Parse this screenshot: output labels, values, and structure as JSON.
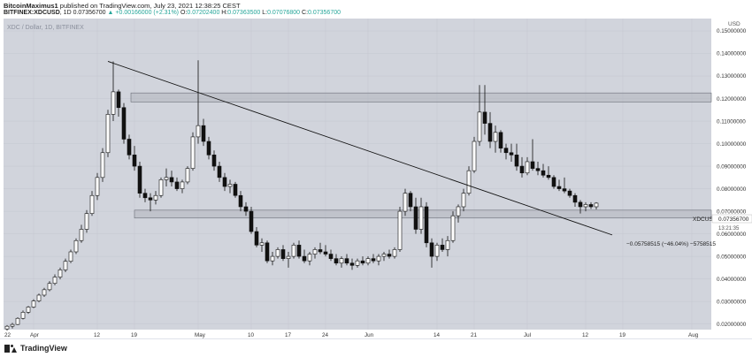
{
  "header": {
    "author": "BitcoinMaximus1",
    "published_text": "published on TradingView.com, July 23, 2021 12:38:25 CEST",
    "symbol": "BITFINEX:XDCUSD",
    "interval": "1D",
    "price": "0.07356700",
    "change": "▲ +0.00166000 (+2.31%)",
    "o_label": "O:",
    "o_value": "0.07202400",
    "h_label": "H:",
    "h_value": "0.07363500",
    "l_label": "L:",
    "l_value": "0.07076800",
    "c_label": "C:",
    "c_value": "0.07356700"
  },
  "chart": {
    "watermark": "XDC / Dollar, 1D, BITFINEX",
    "currency": "USD",
    "symbol_tag": "XDCUSD",
    "last_price_tag": "0.07356700",
    "countdown_tag": "13:21:35",
    "measure_label": "−0.05758515 (−46.04%) −5758515",
    "footer_logo": "TradingView"
  },
  "chart_data": {
    "type": "candlestick",
    "y_tick_labels": [
      "0.15000000",
      "0.14000000",
      "0.13000000",
      "0.12000000",
      "0.11000000",
      "0.10000000",
      "0.09000000",
      "0.08000000",
      "0.07000000",
      "0.06000000",
      "0.05000000",
      "0.04000000",
      "0.03000000",
      "0.02000000"
    ],
    "y_ticks": [
      0.15,
      0.14,
      0.13,
      0.12,
      0.11,
      0.1,
      0.09,
      0.08,
      0.07,
      0.06,
      0.05,
      0.04,
      0.03,
      0.02
    ],
    "ylim": [
      0.0175,
      0.1555
    ],
    "x_tick_labels": [
      "22",
      "Apr",
      "12",
      "19",
      "May",
      "10",
      "17",
      "24",
      "Jun",
      "14",
      "21",
      "Jul",
      "12",
      "19",
      "Aug"
    ],
    "x_tick_day_index": [
      -3,
      5,
      17,
      24,
      36,
      46,
      53,
      60,
      68,
      81,
      88,
      98,
      109,
      116,
      129
    ],
    "first_day": "2021-03-27",
    "resistance_zone": [
      0.1185,
      0.1225
    ],
    "support_zone": [
      0.067,
      0.0705
    ],
    "support_zone_start_day": 24,
    "trendline": {
      "from": [
        "2021-04-15",
        0.1365
      ],
      "to": [
        "2021-07-19",
        0.0595
      ]
    },
    "measure_value": -0.05758515,
    "measure_percent": "-46.04%",
    "candles": [
      [
        0.0178,
        0.0195,
        0.017,
        0.019
      ],
      [
        0.019,
        0.0205,
        0.018,
        0.0198
      ],
      [
        0.0198,
        0.023,
        0.0195,
        0.0225
      ],
      [
        0.0225,
        0.026,
        0.022,
        0.0252
      ],
      [
        0.0252,
        0.028,
        0.0245,
        0.0275
      ],
      [
        0.0275,
        0.031,
        0.027,
        0.0302
      ],
      [
        0.0302,
        0.0335,
        0.0296,
        0.0328
      ],
      [
        0.0328,
        0.036,
        0.032,
        0.0352
      ],
      [
        0.0352,
        0.039,
        0.0345,
        0.038
      ],
      [
        0.038,
        0.042,
        0.0372,
        0.0408
      ],
      [
        0.0408,
        0.045,
        0.0398,
        0.044
      ],
      [
        0.044,
        0.049,
        0.043,
        0.0478
      ],
      [
        0.0478,
        0.053,
        0.047,
        0.052
      ],
      [
        0.052,
        0.058,
        0.051,
        0.057
      ],
      [
        0.057,
        0.064,
        0.056,
        0.062
      ],
      [
        0.062,
        0.0705,
        0.0605,
        0.069
      ],
      [
        0.069,
        0.079,
        0.068,
        0.077
      ],
      [
        0.077,
        0.087,
        0.075,
        0.085
      ],
      [
        0.085,
        0.098,
        0.083,
        0.096
      ],
      [
        0.096,
        0.115,
        0.094,
        0.113
      ],
      [
        0.113,
        0.1365,
        0.11,
        0.123
      ],
      [
        0.123,
        0.124,
        0.112,
        0.116
      ],
      [
        0.116,
        0.118,
        0.1,
        0.102
      ],
      [
        0.102,
        0.104,
        0.093,
        0.095
      ],
      [
        0.095,
        0.099,
        0.088,
        0.09
      ],
      [
        0.09,
        0.092,
        0.076,
        0.078
      ],
      [
        0.078,
        0.08,
        0.074,
        0.076
      ],
      [
        0.076,
        0.078,
        0.07,
        0.075
      ],
      [
        0.075,
        0.079,
        0.073,
        0.077
      ],
      [
        0.077,
        0.085,
        0.076,
        0.084
      ],
      [
        0.084,
        0.089,
        0.081,
        0.085
      ],
      [
        0.085,
        0.088,
        0.081,
        0.083
      ],
      [
        0.083,
        0.085,
        0.079,
        0.08
      ],
      [
        0.08,
        0.084,
        0.078,
        0.083
      ],
      [
        0.083,
        0.09,
        0.082,
        0.089
      ],
      [
        0.089,
        0.105,
        0.088,
        0.103
      ],
      [
        0.103,
        0.137,
        0.1,
        0.108
      ],
      [
        0.108,
        0.111,
        0.099,
        0.101
      ],
      [
        0.101,
        0.103,
        0.093,
        0.095
      ],
      [
        0.095,
        0.097,
        0.088,
        0.09
      ],
      [
        0.09,
        0.092,
        0.083,
        0.085
      ],
      [
        0.085,
        0.087,
        0.079,
        0.081
      ],
      [
        0.081,
        0.084,
        0.078,
        0.082
      ],
      [
        0.082,
        0.083,
        0.076,
        0.077
      ],
      [
        0.077,
        0.079,
        0.07,
        0.072
      ],
      [
        0.072,
        0.074,
        0.068,
        0.07
      ],
      [
        0.07,
        0.072,
        0.06,
        0.061
      ],
      [
        0.061,
        0.063,
        0.054,
        0.055
      ],
      [
        0.055,
        0.058,
        0.052,
        0.056
      ],
      [
        0.056,
        0.057,
        0.047,
        0.048
      ],
      [
        0.048,
        0.052,
        0.046,
        0.05
      ],
      [
        0.05,
        0.054,
        0.049,
        0.053
      ],
      [
        0.053,
        0.055,
        0.048,
        0.049
      ],
      [
        0.049,
        0.052,
        0.045,
        0.05
      ],
      [
        0.05,
        0.056,
        0.049,
        0.055
      ],
      [
        0.055,
        0.057,
        0.049,
        0.05
      ],
      [
        0.05,
        0.053,
        0.047,
        0.048
      ],
      [
        0.048,
        0.052,
        0.046,
        0.051
      ],
      [
        0.051,
        0.054,
        0.049,
        0.053
      ],
      [
        0.053,
        0.056,
        0.051,
        0.052
      ],
      [
        0.052,
        0.055,
        0.05,
        0.051
      ],
      [
        0.051,
        0.053,
        0.048,
        0.049
      ],
      [
        0.049,
        0.051,
        0.046,
        0.047
      ],
      [
        0.047,
        0.05,
        0.045,
        0.049
      ],
      [
        0.049,
        0.051,
        0.046,
        0.047
      ],
      [
        0.047,
        0.049,
        0.044,
        0.046
      ],
      [
        0.046,
        0.049,
        0.045,
        0.048
      ],
      [
        0.048,
        0.05,
        0.046,
        0.047
      ],
      [
        0.047,
        0.05,
        0.046,
        0.049
      ],
      [
        0.049,
        0.051,
        0.047,
        0.048
      ],
      [
        0.048,
        0.051,
        0.046,
        0.05
      ],
      [
        0.05,
        0.052,
        0.048,
        0.051
      ],
      [
        0.051,
        0.053,
        0.049,
        0.05
      ],
      [
        0.05,
        0.054,
        0.049,
        0.053
      ],
      [
        0.053,
        0.072,
        0.052,
        0.07
      ],
      [
        0.07,
        0.08,
        0.068,
        0.078
      ],
      [
        0.078,
        0.079,
        0.07,
        0.072
      ],
      [
        0.072,
        0.076,
        0.06,
        0.062
      ],
      [
        0.062,
        0.076,
        0.06,
        0.072
      ],
      [
        0.072,
        0.074,
        0.054,
        0.056
      ],
      [
        0.056,
        0.058,
        0.045,
        0.05
      ],
      [
        0.05,
        0.056,
        0.048,
        0.055
      ],
      [
        0.055,
        0.058,
        0.052,
        0.053
      ],
      [
        0.053,
        0.059,
        0.05,
        0.057
      ],
      [
        0.057,
        0.07,
        0.056,
        0.068
      ],
      [
        0.068,
        0.073,
        0.065,
        0.072
      ],
      [
        0.072,
        0.08,
        0.07,
        0.078
      ],
      [
        0.078,
        0.09,
        0.077,
        0.088
      ],
      [
        0.088,
        0.103,
        0.087,
        0.101
      ],
      [
        0.101,
        0.126,
        0.099,
        0.114
      ],
      [
        0.114,
        0.126,
        0.104,
        0.109
      ],
      [
        0.109,
        0.114,
        0.098,
        0.101
      ],
      [
        0.101,
        0.108,
        0.096,
        0.105
      ],
      [
        0.105,
        0.106,
        0.096,
        0.098
      ],
      [
        0.098,
        0.1,
        0.093,
        0.096
      ],
      [
        0.096,
        0.1,
        0.092,
        0.095
      ],
      [
        0.095,
        0.1,
        0.088,
        0.09
      ],
      [
        0.09,
        0.094,
        0.085,
        0.087
      ],
      [
        0.087,
        0.094,
        0.086,
        0.092
      ],
      [
        0.092,
        0.102,
        0.088,
        0.089
      ],
      [
        0.089,
        0.092,
        0.086,
        0.088
      ],
      [
        0.088,
        0.091,
        0.085,
        0.086
      ],
      [
        0.086,
        0.09,
        0.084,
        0.085
      ],
      [
        0.085,
        0.086,
        0.08,
        0.081
      ],
      [
        0.081,
        0.084,
        0.079,
        0.08
      ],
      [
        0.08,
        0.085,
        0.078,
        0.079
      ],
      [
        0.079,
        0.08,
        0.076,
        0.077
      ],
      [
        0.077,
        0.078,
        0.072,
        0.074
      ],
      [
        0.074,
        0.075,
        0.069,
        0.072
      ],
      [
        0.072,
        0.074,
        0.07,
        0.073
      ],
      [
        0.073,
        0.074,
        0.071,
        0.072
      ],
      [
        0.072,
        0.074,
        0.0708,
        0.0736
      ]
    ]
  }
}
